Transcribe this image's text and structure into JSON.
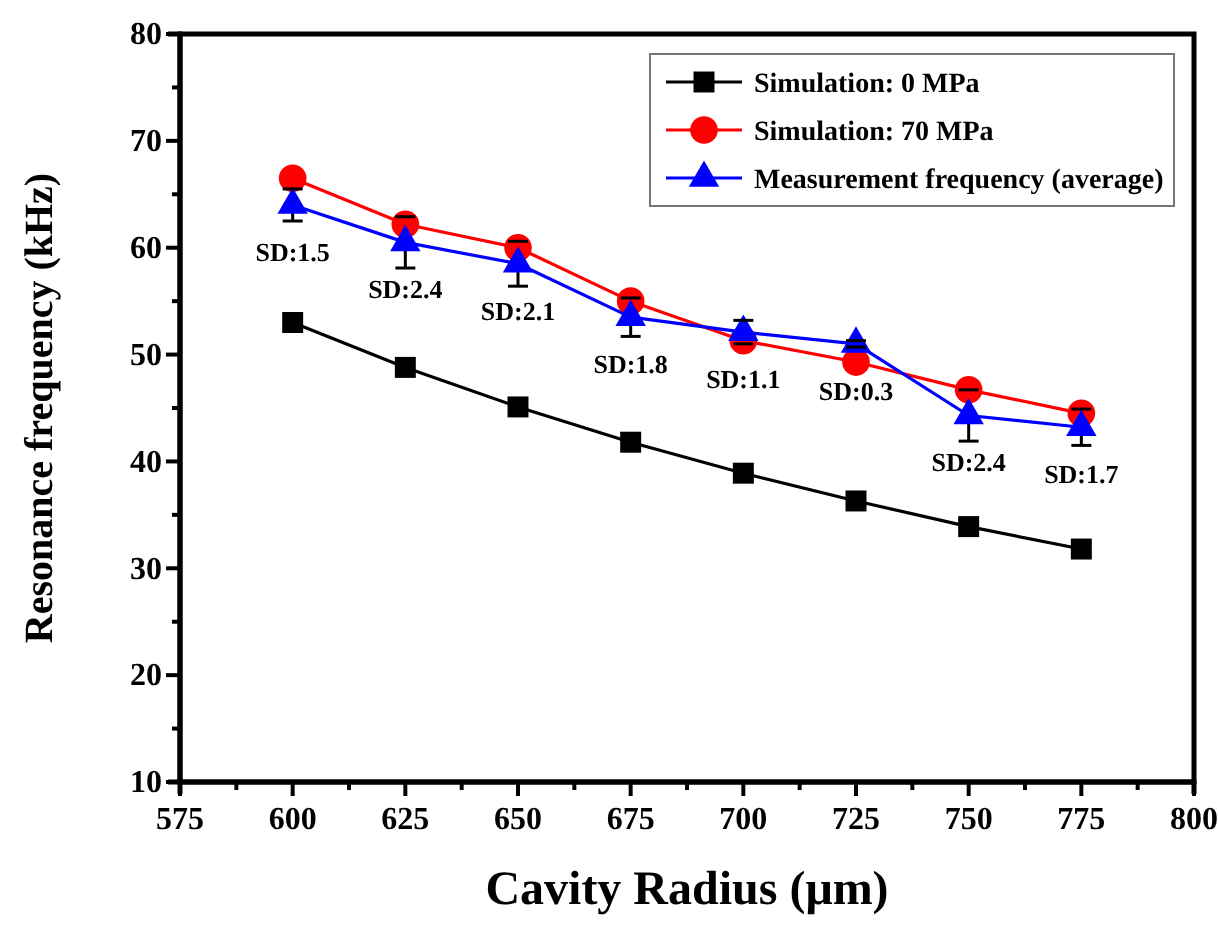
{
  "chart_data": {
    "type": "line",
    "xlabel": "Cavity Radius (μm)",
    "ylabel": "Resonance frequency (kHz)",
    "x": [
      600,
      625,
      650,
      675,
      700,
      725,
      750,
      775
    ],
    "xlim": [
      575,
      800
    ],
    "xticks": [
      575,
      {
        "value": 587.5,
        "label": null
      },
      600,
      {
        "value": 612.5,
        "label": null
      },
      625,
      {
        "value": 637.5,
        "label": null
      },
      650,
      {
        "value": 662.5,
        "label": null
      },
      675,
      {
        "value": 687.5,
        "label": null
      },
      700,
      {
        "value": 712.5,
        "label": null
      },
      725,
      {
        "value": 737.5,
        "label": null
      },
      750,
      {
        "value": 762.5,
        "label": null
      },
      775,
      {
        "value": 787.5,
        "label": null
      },
      800
    ],
    "ylim": [
      10,
      80
    ],
    "yticks": [
      10,
      {
        "value": 15,
        "label": null
      },
      20,
      {
        "value": 25,
        "label": null
      },
      30,
      {
        "value": 35,
        "label": null
      },
      40,
      {
        "value": 45,
        "label": null
      },
      50,
      {
        "value": 55,
        "label": null
      },
      60,
      {
        "value": 65,
        "label": null
      },
      70,
      {
        "value": 75,
        "label": null
      },
      80
    ],
    "grid": false,
    "legend": "top right",
    "line_style": "solid",
    "series": [
      {
        "name": "Simulation: 0 MPa",
        "color": "#000000",
        "marker": "square",
        "values": [
          53.0,
          48.8,
          45.1,
          41.8,
          38.9,
          36.3,
          33.9,
          31.8
        ]
      },
      {
        "name": "Simulation: 70 MPa",
        "color": "#ff0000",
        "marker": "circle",
        "values": [
          66.5,
          62.2,
          60.0,
          55.0,
          51.3,
          49.3,
          46.7,
          44.5
        ]
      },
      {
        "name": "Measurement frequency (average)",
        "color": "#0000ff",
        "marker": "triangle",
        "values": [
          64.0,
          60.5,
          58.5,
          53.5,
          52.1,
          51.0,
          44.3,
          43.2
        ],
        "errors": [
          1.5,
          2.4,
          2.1,
          1.8,
          1.1,
          0.3,
          2.4,
          1.7
        ]
      }
    ],
    "annotations": [
      {
        "text": "SD:1.5",
        "x": 600,
        "y": 64.0
      },
      {
        "text": "SD:2.4",
        "x": 625,
        "y": 60.5
      },
      {
        "text": "SD:2.1",
        "x": 650,
        "y": 58.5
      },
      {
        "text": "SD:1.8",
        "x": 675,
        "y": 53.5
      },
      {
        "text": "SD:1.1",
        "x": 700,
        "y": 52.1
      },
      {
        "text": "SD:0.3",
        "x": 725,
        "y": 51.0
      },
      {
        "text": "SD:2.4",
        "x": 750,
        "y": 44.3
      },
      {
        "text": "SD:1.7",
        "x": 775,
        "y": 43.2
      }
    ]
  }
}
